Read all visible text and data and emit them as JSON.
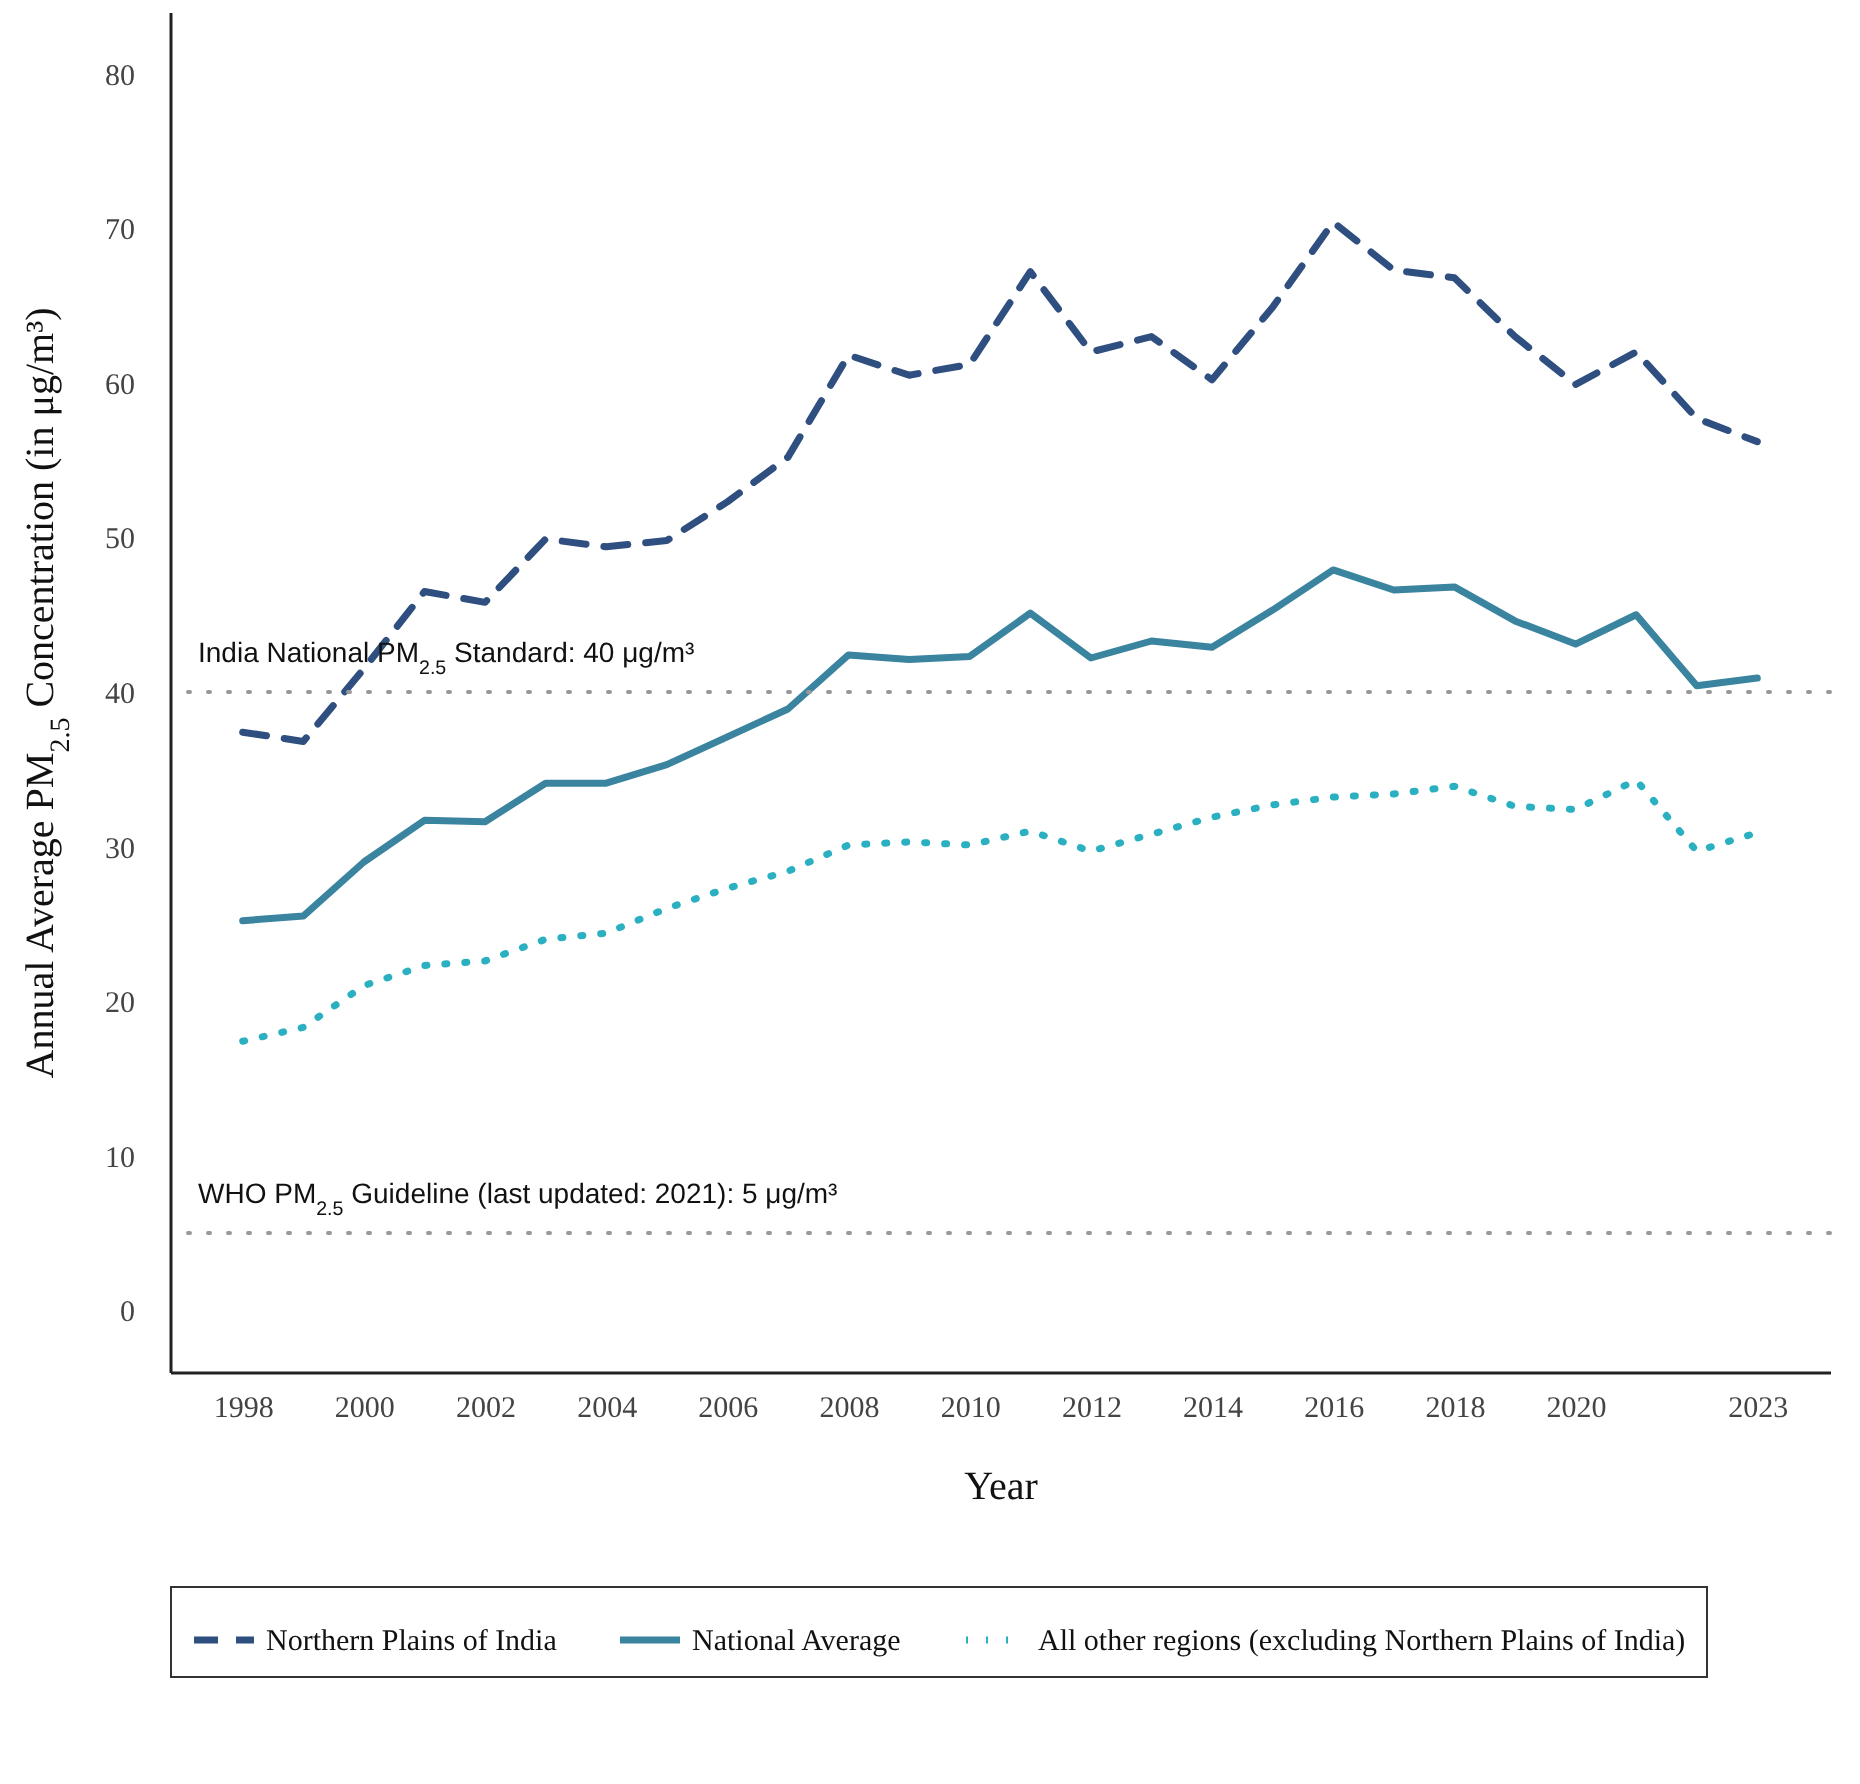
{
  "chart_data": {
    "type": "line",
    "xlabel": "Year",
    "ylabel": "Annual Average PM$_{2.5}$ Concentration (in μg/m³)",
    "x": [
      1998,
      1999,
      2000,
      2001,
      2002,
      2003,
      2004,
      2005,
      2006,
      2007,
      2008,
      2009,
      2010,
      2011,
      2012,
      2013,
      2014,
      2015,
      2016,
      2017,
      2018,
      2019,
      2020,
      2021,
      2022,
      2023
    ],
    "xlim": [
      1996.8,
      2024.2
    ],
    "xticks": [
      1998,
      2000,
      2002,
      2004,
      2006,
      2008,
      2010,
      2012,
      2014,
      2016,
      2018,
      2020,
      2023
    ],
    "ylim": [
      -4,
      84
    ],
    "yticks": [
      0,
      10,
      20,
      30,
      40,
      50,
      60,
      70,
      80
    ],
    "series": [
      {
        "name": "Northern Plains of India",
        "color": "#2e4f7f",
        "line_style": "dashed",
        "values": [
          37.4,
          36.8,
          41.5,
          46.5,
          45.8,
          49.9,
          49.4,
          49.8,
          52.3,
          55.2,
          61.8,
          60.5,
          61.2,
          67.2,
          62.0,
          63.0,
          60.2,
          64.9,
          70.4,
          67.3,
          66.8,
          63.0,
          59.9,
          62.0,
          57.7,
          56.2
        ]
      },
      {
        "name": "National Average",
        "color": "#3a84a0",
        "line_style": "solid",
        "values": [
          25.2,
          25.5,
          29.0,
          31.7,
          31.6,
          34.1,
          34.1,
          35.3,
          37.1,
          38.9,
          42.4,
          42.1,
          42.3,
          45.1,
          42.2,
          43.3,
          42.9,
          45.3,
          47.9,
          46.6,
          46.8,
          44.6,
          43.1,
          45.0,
          40.4,
          40.9
        ]
      },
      {
        "name": "All other regions (excluding Northern Plains of India)",
        "color": "#2ab0c0",
        "line_style": "dotted",
        "values": [
          17.4,
          18.3,
          21.0,
          22.3,
          22.6,
          24.0,
          24.4,
          26.0,
          27.3,
          28.4,
          30.1,
          30.3,
          30.1,
          31.0,
          29.7,
          30.8,
          31.9,
          32.7,
          33.2,
          33.4,
          33.9,
          32.6,
          32.4,
          34.3,
          29.7,
          30.9
        ]
      }
    ],
    "ref_lines": [
      {
        "axis": "y",
        "value": 40,
        "label": "India National PM$_{2.5}$ Standard: 40 μg/m³",
        "color": "#999999",
        "line_style": "dotted"
      },
      {
        "axis": "y",
        "value": 5,
        "label": "WHO PM$_{2.5}$ Guideline (last updated: 2021): 5 μg/m³",
        "color": "#999999",
        "line_style": "dotted"
      }
    ],
    "grid": false,
    "legend": "bottom"
  }
}
